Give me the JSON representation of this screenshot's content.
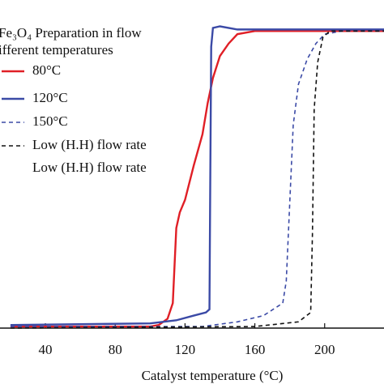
{
  "chart_data": {
    "type": "line",
    "title": [
      "Fe₃O₄ Preparation in flow",
      "ifferent temperatures"
    ],
    "x_label": "Catalyst temperature (°C)",
    "xlim": [
      14,
      234
    ],
    "xticks": [
      40,
      80,
      120,
      160,
      200
    ],
    "ylim": [
      0,
      100
    ],
    "series": [
      {
        "name": "80°C",
        "color": "#e01f26",
        "dash": false,
        "x": [
          20,
          100,
          105,
          110,
          113,
          114,
          115,
          117,
          120,
          125,
          130,
          133,
          136,
          140,
          145,
          150,
          160,
          234
        ],
        "values": [
          0.5,
          0.5,
          1,
          3,
          8,
          20,
          32,
          37,
          41,
          52,
          62,
          72,
          80,
          87,
          91,
          94,
          95,
          95
        ]
      },
      {
        "name": "120°C",
        "color": "#3b4aa6",
        "dash": false,
        "x": [
          20,
          100,
          115,
          125,
          132,
          134,
          134.5,
          135,
          136,
          140,
          150,
          234
        ],
        "values": [
          1,
          1.5,
          2.5,
          4,
          5,
          6,
          50,
          90,
          96,
          96.5,
          95.5,
          95.5
        ]
      },
      {
        "name": "150°C",
        "color": "#3b4aa6",
        "dash": true,
        "x": [
          20,
          130,
          150,
          165,
          176,
          178,
          180,
          182,
          185,
          190,
          195,
          200,
          210,
          234
        ],
        "values": [
          0.5,
          0.5,
          2,
          4,
          8,
          15,
          40,
          65,
          78,
          86,
          91,
          94,
          95,
          95
        ]
      },
      {
        "name": "Low (H.H) flow rate",
        "color": "#111111",
        "dash": true,
        "x": [
          20,
          160,
          185,
          192,
          193,
          194,
          196,
          199,
          203,
          234
        ],
        "values": [
          0,
          0.5,
          2,
          5,
          30,
          70,
          85,
          93,
          95,
          95
        ]
      }
    ],
    "annotations": [
      "Low (H.H) flow rate"
    ]
  }
}
